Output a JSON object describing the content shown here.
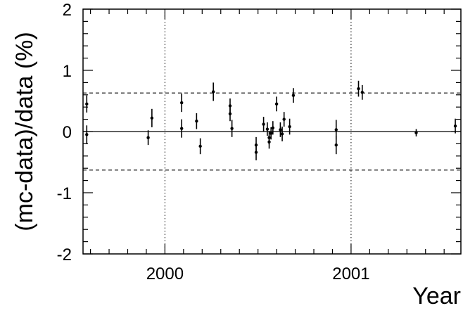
{
  "chart_data": {
    "type": "scatter",
    "title": "",
    "xlabel": "Year",
    "ylabel": "(mc-data)/data (%)",
    "xlim": [
      1999.56,
      2001.59
    ],
    "ylim": [
      -2,
      2
    ],
    "x_ticks": [
      2000,
      2001
    ],
    "x_tick_labels": [
      "2000",
      "2001"
    ],
    "y_ticks": [
      -2,
      -1,
      0,
      1,
      2
    ],
    "y_tick_labels": [
      "-2",
      "-1",
      "0",
      "1",
      "2"
    ],
    "grid": false,
    "vertical_reference_lines": [
      2000,
      2001
    ],
    "horizontal_reference_lines": [
      {
        "y": 0,
        "style": "solid"
      },
      {
        "y": 0.63,
        "style": "dashed"
      },
      {
        "y": -0.63,
        "style": "dashed"
      }
    ],
    "series": [
      {
        "points": [
          {
            "x": 1999.58,
            "y": 0.45,
            "err": 0.14
          },
          {
            "x": 1999.58,
            "y": -0.05,
            "err": 0.15
          },
          {
            "x": 1999.91,
            "y": -0.1,
            "err": 0.12
          },
          {
            "x": 1999.93,
            "y": 0.22,
            "err": 0.15
          },
          {
            "x": 2000.09,
            "y": 0.47,
            "err": 0.15
          },
          {
            "x": 2000.09,
            "y": 0.05,
            "err": 0.15
          },
          {
            "x": 2000.17,
            "y": 0.17,
            "err": 0.13
          },
          {
            "x": 2000.19,
            "y": -0.24,
            "err": 0.13
          },
          {
            "x": 2000.26,
            "y": 0.65,
            "err": 0.15
          },
          {
            "x": 2000.35,
            "y": 0.42,
            "err": 0.12
          },
          {
            "x": 2000.35,
            "y": 0.29,
            "err": 0.12
          },
          {
            "x": 2000.36,
            "y": 0.05,
            "err": 0.14
          },
          {
            "x": 2000.49,
            "y": -0.22,
            "err": 0.13
          },
          {
            "x": 2000.49,
            "y": -0.34,
            "err": 0.13
          },
          {
            "x": 2000.53,
            "y": 0.12,
            "err": 0.12
          },
          {
            "x": 2000.55,
            "y": 0.04,
            "err": 0.11
          },
          {
            "x": 2000.56,
            "y": -0.1,
            "err": 0.11
          },
          {
            "x": 2000.56,
            "y": -0.17,
            "err": 0.11
          },
          {
            "x": 2000.57,
            "y": -0.03,
            "err": 0.1
          },
          {
            "x": 2000.58,
            "y": 0.06,
            "err": 0.11
          },
          {
            "x": 2000.6,
            "y": 0.45,
            "err": 0.12
          },
          {
            "x": 2000.62,
            "y": 0.03,
            "err": 0.12
          },
          {
            "x": 2000.63,
            "y": -0.04,
            "err": 0.12
          },
          {
            "x": 2000.64,
            "y": 0.2,
            "err": 0.12
          },
          {
            "x": 2000.67,
            "y": 0.08,
            "err": 0.13
          },
          {
            "x": 2000.69,
            "y": 0.59,
            "err": 0.12
          },
          {
            "x": 2000.92,
            "y": 0.03,
            "err": 0.16
          },
          {
            "x": 2000.92,
            "y": -0.22,
            "err": 0.15
          },
          {
            "x": 2001.04,
            "y": 0.7,
            "err": 0.13
          },
          {
            "x": 2001.06,
            "y": 0.64,
            "err": 0.12
          },
          {
            "x": 2001.35,
            "y": -0.02,
            "err": 0.06
          },
          {
            "x": 2001.56,
            "y": 0.09,
            "err": 0.12
          }
        ]
      }
    ]
  }
}
